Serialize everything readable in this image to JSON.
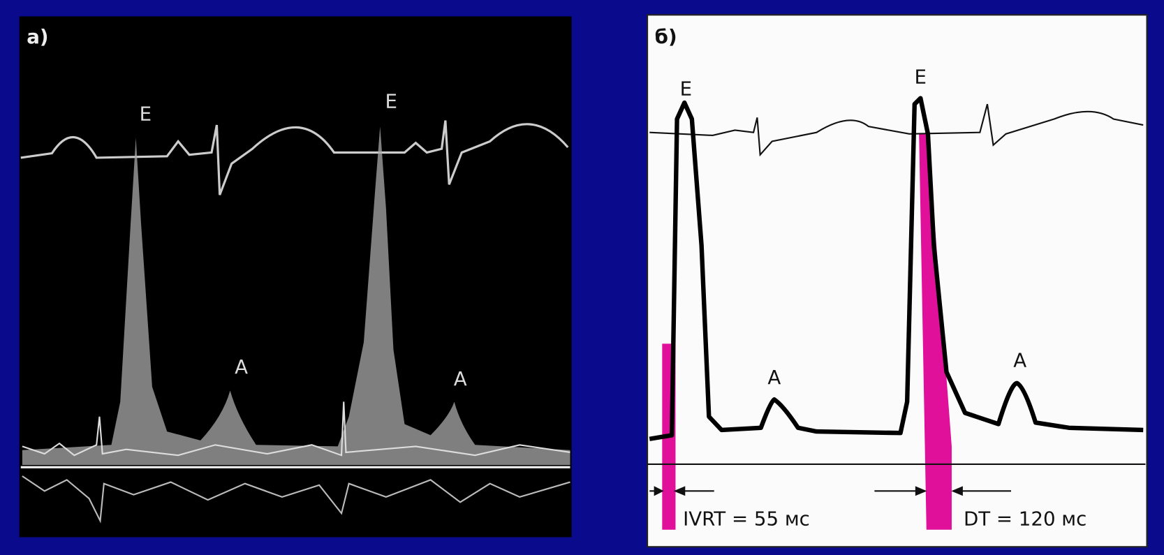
{
  "panels": [
    {
      "label": "а)",
      "peaks": [
        "E",
        "E",
        "A",
        "A"
      ]
    },
    {
      "label": "б)",
      "peaks": [
        "E",
        "E",
        "A",
        "A"
      ],
      "annotations": [
        "IVRT = 55 мс",
        "DT = 120 мс"
      ]
    }
  ]
}
